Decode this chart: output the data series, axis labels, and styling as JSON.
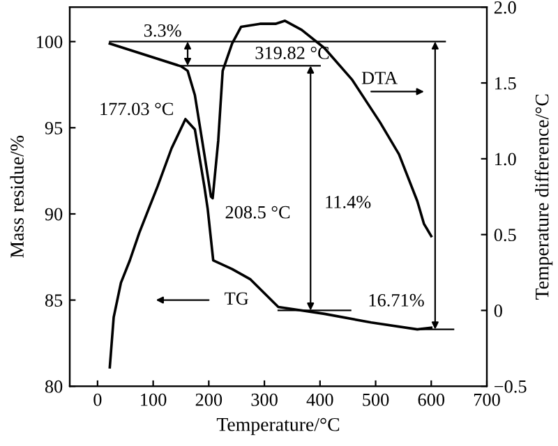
{
  "chart_data": {
    "type": "line",
    "xlabel": "Temperature/°C",
    "ylabel": "Mass residue/%",
    "y2label": "Temperature difference/°C",
    "xlim": [
      -50,
      700
    ],
    "xticks": [
      0,
      100,
      200,
      300,
      400,
      500,
      600,
      700
    ],
    "ylim": [
      80,
      102
    ],
    "yticks": [
      80,
      85,
      90,
      95,
      100
    ],
    "y2lim": [
      -0.5,
      2.0
    ],
    "y2ticks": [
      {
        "value": -0.5,
        "label": "−0.5"
      },
      0,
      0.5,
      {
        "value": 1.0,
        "label": "1.0"
      },
      1.5,
      {
        "value": 2.0,
        "label": "2.0"
      }
    ],
    "series": [
      {
        "color": "#000000",
        "axis": "y2",
        "x": [
          22,
          150,
          162,
          175,
          192,
          204,
          207,
          217,
          225,
          242,
          258,
          292,
          320,
          337,
          367,
          408,
          458,
          508,
          542,
          575,
          587,
          592,
          600
        ],
        "values": [
          1.76,
          1.61,
          1.58,
          1.42,
          1.03,
          0.75,
          0.74,
          1.12,
          1.58,
          1.76,
          1.87,
          1.89,
          1.89,
          1.91,
          1.85,
          1.73,
          1.52,
          1.24,
          1.03,
          0.72,
          0.57,
          0.54,
          0.49
        ]
      },
      {
        "color": "#000000",
        "x": [
          22,
          29,
          42,
          58,
          75,
          92,
          108,
          133,
          158,
          175,
          192,
          198,
          208,
          242,
          275,
          300,
          325,
          408,
          492,
          575,
          600
        ],
        "values": [
          81.1,
          84.0,
          86.0,
          87.3,
          88.9,
          90.3,
          91.6,
          93.8,
          95.5,
          94.9,
          91.6,
          90.3,
          87.3,
          86.8,
          86.2,
          85.4,
          84.6,
          84.2,
          83.7,
          83.3,
          83.4
        ]
      }
    ],
    "ref_lines": [
      {
        "axis": "y",
        "value": 100,
        "color": "#000000"
      },
      {
        "axis": "y",
        "value": 98.6,
        "color": "#000000"
      },
      {
        "axis": "y",
        "value": 84.4,
        "color": "#000000"
      },
      {
        "axis": "y",
        "value": 83.3,
        "color": "#000000"
      }
    ],
    "annotations": [
      "3.3%",
      "319.82 °C",
      "DTA",
      "177.03 °C",
      "208.5 °C",
      "11.4%",
      "TG",
      "16.71%"
    ],
    "grid": false,
    "legend": false,
    "marker": "none",
    "line_style": "solid"
  }
}
